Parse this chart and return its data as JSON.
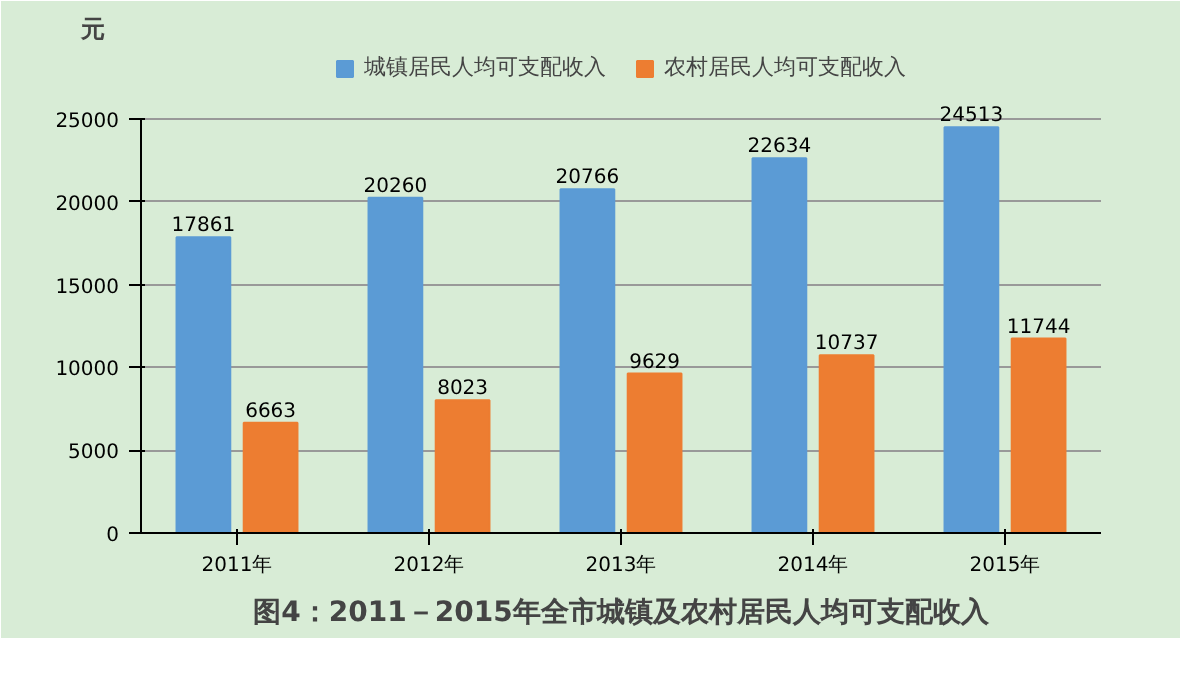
{
  "chart_data": {
    "type": "bar",
    "title": "图4：2011－2015年全市城镇及农村居民人均可支配收入",
    "ylabel": "元",
    "categories": [
      "2011年",
      "2012年",
      "2013年",
      "2014年",
      "2015年"
    ],
    "series": [
      {
        "name": "城镇居民人均可支配收入",
        "color": "#5b9bd5",
        "values": [
          17861,
          20260,
          20766,
          22634,
          24513
        ]
      },
      {
        "name": "农村居民人均可支配收入",
        "color": "#ed7d31",
        "values": [
          6663,
          8023,
          9629,
          10737,
          11744
        ]
      }
    ],
    "ylim": [
      0,
      25000
    ],
    "yticks": [
      0,
      5000,
      10000,
      15000,
      20000,
      25000
    ],
    "grid": "y",
    "legend": "top",
    "data_labels": true
  }
}
